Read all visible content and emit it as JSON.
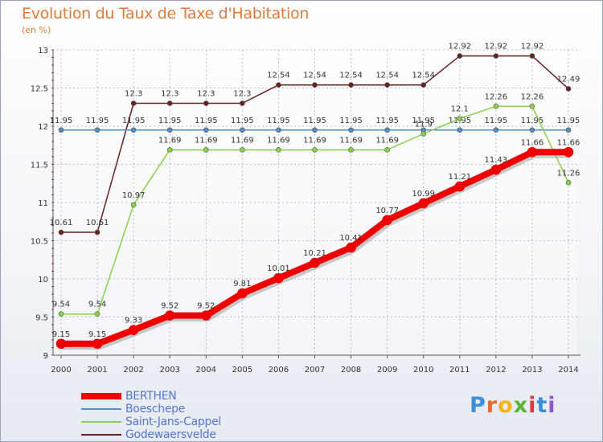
{
  "title": "Evolution du Taux de Taxe d'Habitation",
  "unit": "(en %)",
  "chart_data": {
    "type": "line",
    "title": "Evolution du Taux de Taxe d'Habitation",
    "ylabel": "(en %)",
    "xlabel": "",
    "ylim": [
      9,
      13
    ],
    "yticks": [
      "9",
      "9.5",
      "10",
      "10.5",
      "11",
      "11.5",
      "12",
      "12.5",
      "13"
    ],
    "x": [
      "2000",
      "2001",
      "2002",
      "2003",
      "2004",
      "2005",
      "2006",
      "2007",
      "2008",
      "2009",
      "2010",
      "2011",
      "2012",
      "2013",
      "2014"
    ],
    "grid": true,
    "legend_position": "bottom-left",
    "series": [
      {
        "name": "Godewaersvelde",
        "color": "#6b1f1f",
        "values": [
          10.61,
          10.61,
          12.3,
          12.3,
          12.3,
          12.3,
          12.54,
          12.54,
          12.54,
          12.54,
          12.54,
          12.92,
          12.92,
          12.92,
          12.49
        ],
        "labels": [
          "10.61",
          "10.61",
          "12.3",
          "12.3",
          "12.3",
          "12.3",
          "12.54",
          "12.54",
          "12.54",
          "12.54",
          "12.54",
          "12.92",
          "12.92",
          "12.92",
          "12.49"
        ]
      },
      {
        "name": "Boeschepe",
        "color": "#4f8fc4",
        "values": [
          11.95,
          11.95,
          11.95,
          11.95,
          11.95,
          11.95,
          11.95,
          11.95,
          11.95,
          11.95,
          11.95,
          11.95,
          11.95,
          11.95,
          11.95
        ],
        "labels": [
          "11.95",
          "11.95",
          "11.95",
          "11.95",
          "11.95",
          "11.95",
          "11.95",
          "11.95",
          "11.95",
          "11.95",
          "11.95",
          "11.95",
          "11.95",
          "11.95",
          "11.95"
        ]
      },
      {
        "name": "Saint-Jans-Cappel",
        "color": "#8ad04a",
        "values": [
          9.54,
          9.54,
          10.97,
          11.69,
          11.69,
          11.69,
          11.69,
          11.69,
          11.69,
          11.69,
          11.9,
          12.1,
          12.26,
          12.26,
          11.26
        ],
        "labels": [
          "9.54",
          "9.54",
          "10.97",
          "11.69",
          "11.69",
          "11.69",
          "11.69",
          "11.69",
          "11.69",
          "11.69",
          "11.9",
          "12.1",
          "12.26",
          "12.26",
          "11.26"
        ]
      },
      {
        "name": "BERTHEN",
        "color": "#ee0000",
        "values": [
          9.15,
          9.15,
          9.33,
          9.52,
          9.52,
          9.81,
          10.01,
          10.21,
          10.41,
          10.77,
          10.99,
          11.21,
          11.43,
          11.66,
          11.66
        ],
        "labels": [
          "9.15",
          "9.15",
          "9.33",
          "9.52",
          "9.52",
          "9.81",
          "10.01",
          "10.21",
          "10.41",
          "10.77",
          "10.99",
          "11.21",
          "11.43",
          "11.66",
          "11.66"
        ]
      }
    ]
  },
  "legend": [
    "BERTHEN",
    "Boeschepe",
    "Saint-Jans-Cappel",
    "Godewaersvelde"
  ],
  "logo": {
    "text": "Proxiti",
    "letters": [
      "P",
      "r",
      "o",
      "x",
      "i",
      "t",
      "i"
    ],
    "colors": [
      "#3b8fd8",
      "#e8682a",
      "#f3b21c",
      "#5ab43c",
      "#e03b3b",
      "#3b8fd8",
      "#8b5bc8"
    ]
  }
}
